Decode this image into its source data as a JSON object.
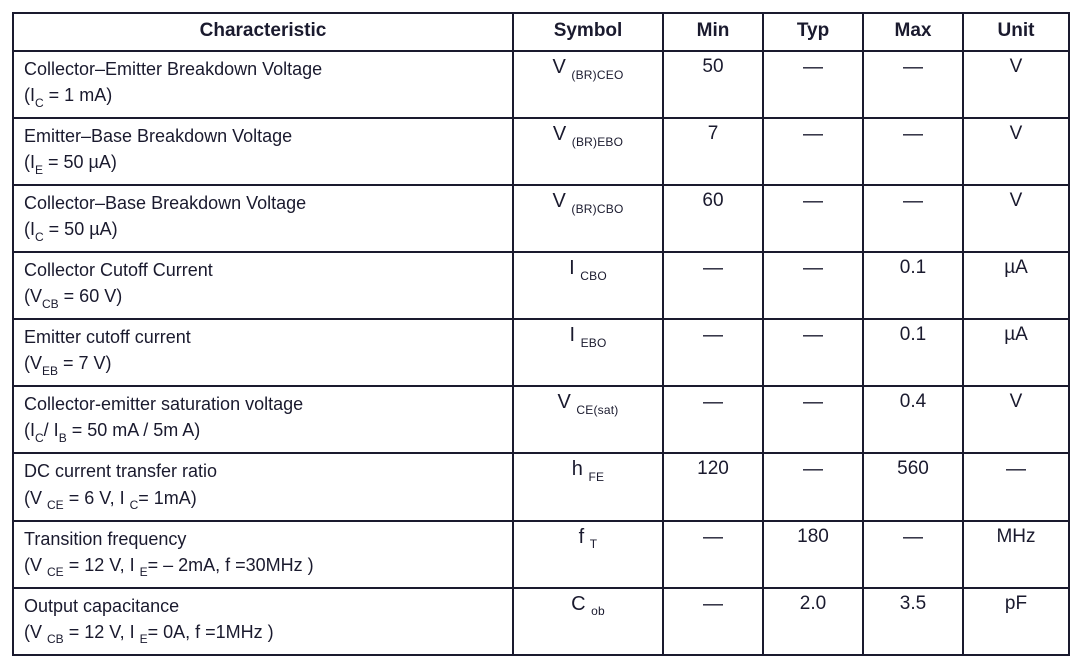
{
  "table": {
    "headers": {
      "characteristic": "Characteristic",
      "symbol": "Symbol",
      "min": "Min",
      "typ": "Typ",
      "max": "Max",
      "unit": "Unit"
    },
    "rows": [
      {
        "line1_pre": "Collector–Emitter Breakdown Voltage",
        "line2_pre": "(I",
        "line2_sub1": "C",
        "line2_mid": " = 1 mA)",
        "line2_sub2": "",
        "line2_post": "",
        "sym_main": "V ",
        "sym_sub": "(BR)CEO",
        "min": "50",
        "typ": "—",
        "max": "—",
        "unit": "V"
      },
      {
        "line1_pre": "Emitter–Base Breakdown Voltage",
        "line2_pre": "(I",
        "line2_sub1": "E",
        "line2_mid": " =  50 µA)",
        "line2_sub2": "",
        "line2_post": "",
        "sym_main": "V ",
        "sym_sub": "(BR)EBO",
        "min": "7",
        "typ": "—",
        "max": "—",
        "unit": "V"
      },
      {
        "line1_pre": "Collector–Base Breakdown Voltage",
        "line2_pre": "(I",
        "line2_sub1": "C",
        "line2_mid": " =   50 µA)",
        "line2_sub2": "",
        "line2_post": "",
        "sym_main": "V ",
        "sym_sub": "(BR)CBO",
        "min": "60",
        "typ": "—",
        "max": "—",
        "unit": "V"
      },
      {
        "line1_pre": "Collector Cutoff Current",
        "line2_pre": "(V",
        "line2_sub1": "CB",
        "line2_mid": " =  60 V)",
        "line2_sub2": "",
        "line2_post": "",
        "sym_main": "I ",
        "sym_sub": "CBO",
        "min": "—",
        "typ": "—",
        "max": "0.1",
        "unit": "µA"
      },
      {
        "line1_pre": "Emitter cutoff current",
        "line2_pre": "(V",
        "line2_sub1": "EB",
        "line2_mid": " =  7 V)",
        "line2_sub2": "",
        "line2_post": "",
        "sym_main": "I ",
        "sym_sub": "EBO",
        "min": "—",
        "typ": "—",
        "max": "0.1",
        "unit": "µA"
      },
      {
        "line1_pre": "Collector-emitter saturation voltage",
        "line2_pre": "(I",
        "line2_sub1": "C",
        "line2_mid": "/ I",
        "line2_sub2": "B",
        "line2_post": " =   50 mA /  5m A)",
        "sym_main": "V ",
        "sym_sub": "CE(sat)",
        "min": "—",
        "typ": "—",
        "max": "0.4",
        "unit": "V"
      },
      {
        "line1_pre": "DC current transfer ratio",
        "line2_pre": "(V ",
        "line2_sub1": "CE",
        "line2_mid": " =  6 V, I ",
        "line2_sub2": "C",
        "line2_post": "= 1mA)",
        "sym_main": "h ",
        "sym_sub": "FE",
        "min": "120",
        "typ": "—",
        "max": "560",
        "unit": "—"
      },
      {
        "line1_pre": "Transition frequency",
        "line2_pre": "(V ",
        "line2_sub1": "CE",
        "line2_mid": " =  12 V, I ",
        "line2_sub2": "E",
        "line2_post": "= – 2mA, f =30MHz )",
        "sym_main": "f ",
        "sym_sub": "T",
        "min": "—",
        "typ": "180",
        "max": "—",
        "unit": "MHz"
      },
      {
        "line1_pre": "Output capacitance",
        "line2_pre": "(V ",
        "line2_sub1": "CB",
        "line2_mid": " =  12 V, I ",
        "line2_sub2": "E",
        "line2_post": "= 0A, f =1MHz )",
        "sym_main": "C ",
        "sym_sub": "ob",
        "min": "—",
        "typ": "2.0",
        "max": "3.5",
        "unit": "pF"
      }
    ]
  }
}
